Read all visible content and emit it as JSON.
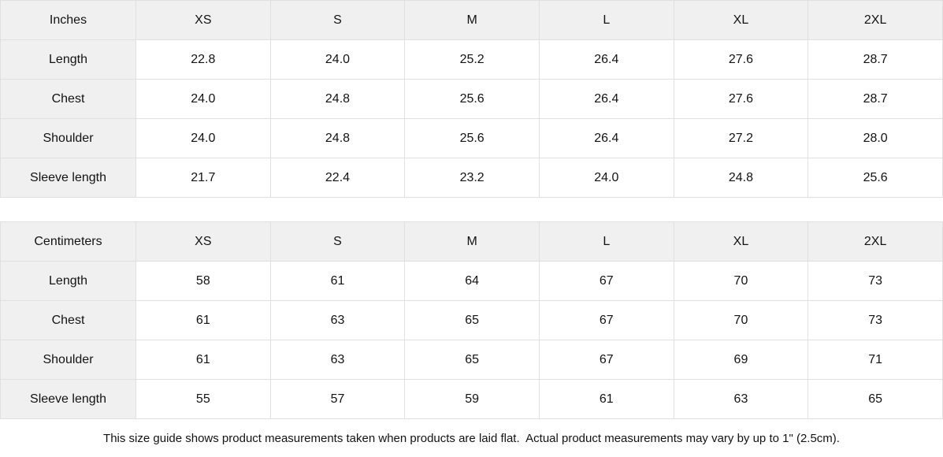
{
  "size_guide": {
    "tables": [
      {
        "id": "inches-table",
        "unit_label": "Inches",
        "sizes": [
          "XS",
          "S",
          "M",
          "L",
          "XL",
          "2XL"
        ],
        "rows": [
          {
            "label": "Length",
            "values": [
              "22.8",
              "24.0",
              "25.2",
              "26.4",
              "27.6",
              "28.7"
            ]
          },
          {
            "label": "Chest",
            "values": [
              "24.0",
              "24.8",
              "25.6",
              "26.4",
              "27.6",
              "28.7"
            ]
          },
          {
            "label": "Shoulder",
            "values": [
              "24.0",
              "24.8",
              "25.6",
              "26.4",
              "27.2",
              "28.0"
            ]
          },
          {
            "label": "Sleeve length",
            "values": [
              "21.7",
              "22.4",
              "23.2",
              "24.0",
              "24.8",
              "25.6"
            ]
          }
        ]
      },
      {
        "id": "centimeters-table",
        "unit_label": "Centimeters",
        "sizes": [
          "XS",
          "S",
          "M",
          "L",
          "XL",
          "2XL"
        ],
        "rows": [
          {
            "label": "Length",
            "values": [
              "58",
              "61",
              "64",
              "67",
              "70",
              "73"
            ]
          },
          {
            "label": "Chest",
            "values": [
              "61",
              "63",
              "65",
              "67",
              "70",
              "73"
            ]
          },
          {
            "label": "Shoulder",
            "values": [
              "61",
              "63",
              "65",
              "67",
              "69",
              "71"
            ]
          },
          {
            "label": "Sleeve length",
            "values": [
              "55",
              "57",
              "59",
              "61",
              "63",
              "65"
            ]
          }
        ]
      }
    ],
    "footer_note": "This size guide shows product measurements taken when products are laid flat.  Actual product measurements may vary by up to 1\" (2.5cm).",
    "colors": {
      "header_background": "#f0f0f0",
      "cell_background": "#ffffff",
      "border": "#e0e0e0",
      "text": "#131313"
    }
  },
  "chart_data": {
    "type": "table",
    "title": "Size guide",
    "tables": [
      {
        "unit": "Inches",
        "columns": [
          "XS",
          "S",
          "M",
          "L",
          "XL",
          "2XL"
        ],
        "rows": {
          "Length": [
            22.8,
            24.0,
            25.2,
            26.4,
            27.6,
            28.7
          ],
          "Chest": [
            24.0,
            24.8,
            25.6,
            26.4,
            27.6,
            28.7
          ],
          "Shoulder": [
            24.0,
            24.8,
            25.6,
            26.4,
            27.2,
            28.0
          ],
          "Sleeve length": [
            21.7,
            22.4,
            23.2,
            24.0,
            24.8,
            25.6
          ]
        }
      },
      {
        "unit": "Centimeters",
        "columns": [
          "XS",
          "S",
          "M",
          "L",
          "XL",
          "2XL"
        ],
        "rows": {
          "Length": [
            58,
            61,
            64,
            67,
            70,
            73
          ],
          "Chest": [
            61,
            63,
            65,
            67,
            70,
            73
          ],
          "Shoulder": [
            61,
            63,
            65,
            67,
            69,
            71
          ],
          "Sleeve length": [
            55,
            57,
            59,
            61,
            63,
            65
          ]
        }
      }
    ]
  }
}
